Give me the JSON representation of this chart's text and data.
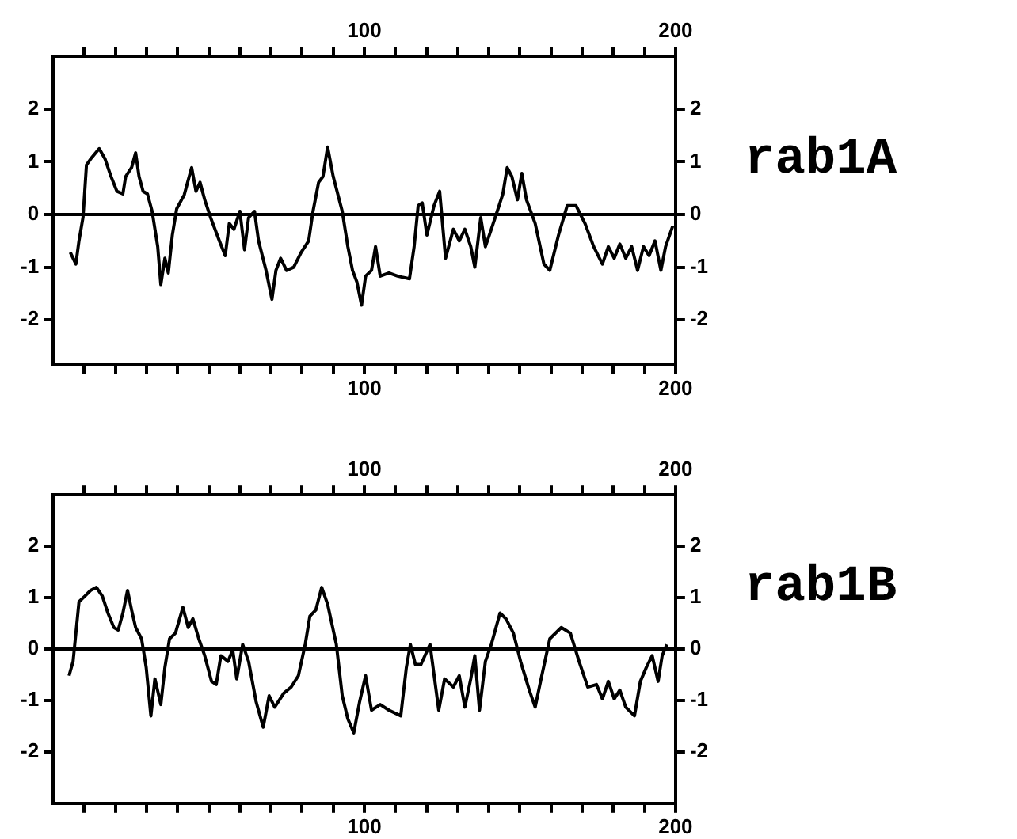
{
  "chart_data": [
    {
      "type": "line",
      "annotations": [
        "rab1A"
      ],
      "xlim": [
        0,
        200
      ],
      "x2lim": [
        0,
        200
      ],
      "ylim": [
        -2.85,
        3
      ],
      "y2lim": [
        -2.85,
        3
      ],
      "xticks": [
        {
          "value": 10,
          "label": null
        },
        {
          "value": 20,
          "label": null
        },
        {
          "value": 30,
          "label": null
        },
        {
          "value": 40,
          "label": null
        },
        {
          "value": 50,
          "label": null
        },
        {
          "value": 60,
          "label": null
        },
        {
          "value": 70,
          "label": null
        },
        {
          "value": 80,
          "label": null
        },
        {
          "value": 90,
          "label": null
        },
        {
          "value": 100,
          "label": "100"
        },
        {
          "value": 110,
          "label": null
        },
        {
          "value": 120,
          "label": null
        },
        {
          "value": 130,
          "label": null
        },
        {
          "value": 140,
          "label": null
        },
        {
          "value": 150,
          "label": null
        },
        {
          "value": 160,
          "label": null
        },
        {
          "value": 170,
          "label": null
        },
        {
          "value": 180,
          "label": null
        },
        {
          "value": 190,
          "label": null
        },
        {
          "value": 200,
          "label": "200"
        }
      ],
      "x2ticks": [
        {
          "value": 10,
          "label": null
        },
        {
          "value": 20,
          "label": null
        },
        {
          "value": 30,
          "label": null
        },
        {
          "value": 40,
          "label": null
        },
        {
          "value": 50,
          "label": null
        },
        {
          "value": 60,
          "label": null
        },
        {
          "value": 70,
          "label": null
        },
        {
          "value": 80,
          "label": null
        },
        {
          "value": 90,
          "label": null
        },
        {
          "value": 100,
          "label": "100"
        },
        {
          "value": 110,
          "label": null
        },
        {
          "value": 120,
          "label": null
        },
        {
          "value": 130,
          "label": null
        },
        {
          "value": 140,
          "label": null
        },
        {
          "value": 150,
          "label": null
        },
        {
          "value": 160,
          "label": null
        },
        {
          "value": 170,
          "label": null
        },
        {
          "value": 180,
          "label": null
        },
        {
          "value": 190,
          "label": null
        },
        {
          "value": 200,
          "label": "200"
        }
      ],
      "yticks": [
        -2,
        -1,
        0,
        1,
        2
      ],
      "y2ticks": [
        -2,
        -1,
        0,
        1,
        2
      ],
      "marker": "none",
      "line_style": "solid",
      "ref_lines": [
        {
          "axis": "y",
          "value": 0,
          "color": "#000000"
        }
      ],
      "series": [
        {
          "color": "#000000",
          "x": [
            5.5,
            7.3,
            8.3,
            9.6,
            10.7,
            12,
            14.8,
            16.7,
            18.6,
            20.5,
            22.4,
            23.3,
            25.2,
            26.5,
            27.6,
            28.9,
            30.3,
            31.8,
            33.6,
            34.6,
            35.9,
            37,
            38.3,
            39.7,
            42.1,
            44.5,
            45.9,
            47.2,
            48.7,
            50.6,
            53.4,
            55.3,
            56.6,
            58.1,
            60,
            61.5,
            62.8,
            64.7,
            66,
            68.4,
            70.3,
            71.6,
            73.1,
            75,
            77.3,
            79.7,
            82.1,
            83.5,
            85.3,
            86.7,
            88.2,
            90,
            92.9,
            94.7,
            96.2,
            97.6,
            99.1,
            100.4,
            102.3,
            103.6,
            105.1,
            107.9,
            110.7,
            114.5,
            116,
            117.3,
            118.6,
            120.1,
            122.4,
            124.2,
            126.1,
            128.6,
            130.5,
            132.3,
            134.2,
            135.5,
            137.4,
            138.9,
            140.8,
            142.7,
            144.5,
            145.9,
            147.4,
            149.2,
            150.6,
            152.1,
            154.9,
            157.7,
            159.6,
            162.4,
            165.2,
            168,
            170.9,
            173.7,
            176.5,
            178.4,
            180.3,
            182.1,
            184,
            185.9,
            187.8,
            189.7,
            191.5,
            193.4,
            195.3,
            196.8,
            199.1
          ],
          "values": [
            -0.72,
            -0.94,
            -0.5,
            -0.05,
            0.94,
            1.05,
            1.25,
            1.05,
            0.72,
            0.44,
            0.39,
            0.72,
            0.89,
            1.17,
            0.72,
            0.44,
            0.39,
            0.06,
            -0.61,
            -1.33,
            -0.83,
            -1.11,
            -0.39,
            0.11,
            0.37,
            0.89,
            0.44,
            0.61,
            0.28,
            -0.06,
            -0.5,
            -0.78,
            -0.17,
            -0.28,
            0.06,
            -0.67,
            -0.06,
            0.06,
            -0.5,
            -1.06,
            -1.61,
            -1.06,
            -0.83,
            -1.06,
            -1.0,
            -0.72,
            -0.5,
            0.06,
            0.61,
            0.72,
            1.28,
            0.72,
            0.06,
            -0.61,
            -1.06,
            -1.28,
            -1.72,
            -1.17,
            -1.06,
            -0.61,
            -1.17,
            -1.11,
            -1.17,
            -1.22,
            -0.61,
            0.17,
            0.22,
            -0.39,
            0.17,
            0.44,
            -0.83,
            -0.28,
            -0.5,
            -0.28,
            -0.61,
            -1.0,
            -0.06,
            -0.61,
            -0.28,
            0.06,
            0.39,
            0.89,
            0.72,
            0.28,
            0.78,
            0.28,
            -0.17,
            -0.94,
            -1.06,
            -0.39,
            0.17,
            0.17,
            -0.17,
            -0.61,
            -0.94,
            -0.61,
            -0.83,
            -0.56,
            -0.83,
            -0.61,
            -1.06,
            -0.61,
            -0.78,
            -0.5,
            -1.06,
            -0.61,
            -0.22
          ]
        }
      ]
    },
    {
      "type": "line",
      "annotations": [
        "rab1B"
      ],
      "xlim": [
        0,
        200
      ],
      "x2lim": [
        0,
        200
      ],
      "ylim": [
        -3,
        3
      ],
      "y2lim": [
        -3,
        3
      ],
      "xticks": [
        {
          "value": 10,
          "label": null
        },
        {
          "value": 20,
          "label": null
        },
        {
          "value": 30,
          "label": null
        },
        {
          "value": 40,
          "label": null
        },
        {
          "value": 50,
          "label": null
        },
        {
          "value": 60,
          "label": null
        },
        {
          "value": 70,
          "label": null
        },
        {
          "value": 80,
          "label": null
        },
        {
          "value": 90,
          "label": null
        },
        {
          "value": 100,
          "label": "100"
        },
        {
          "value": 110,
          "label": null
        },
        {
          "value": 120,
          "label": null
        },
        {
          "value": 130,
          "label": null
        },
        {
          "value": 140,
          "label": null
        },
        {
          "value": 150,
          "label": null
        },
        {
          "value": 160,
          "label": null
        },
        {
          "value": 170,
          "label": null
        },
        {
          "value": 180,
          "label": null
        },
        {
          "value": 190,
          "label": null
        },
        {
          "value": 200,
          "label": "200"
        }
      ],
      "x2ticks": [
        {
          "value": 10,
          "label": null
        },
        {
          "value": 20,
          "label": null
        },
        {
          "value": 30,
          "label": null
        },
        {
          "value": 40,
          "label": null
        },
        {
          "value": 50,
          "label": null
        },
        {
          "value": 60,
          "label": null
        },
        {
          "value": 70,
          "label": null
        },
        {
          "value": 80,
          "label": null
        },
        {
          "value": 90,
          "label": null
        },
        {
          "value": 100,
          "label": "100"
        },
        {
          "value": 110,
          "label": null
        },
        {
          "value": 120,
          "label": null
        },
        {
          "value": 130,
          "label": null
        },
        {
          "value": 140,
          "label": null
        },
        {
          "value": 150,
          "label": null
        },
        {
          "value": 160,
          "label": null
        },
        {
          "value": 170,
          "label": null
        },
        {
          "value": 180,
          "label": null
        },
        {
          "value": 190,
          "label": null
        },
        {
          "value": 200,
          "label": "200"
        }
      ],
      "yticks": [
        -2,
        -1,
        0,
        1,
        2
      ],
      "y2ticks": [
        -2,
        -1,
        0,
        1,
        2
      ],
      "marker": "none",
      "line_style": "solid",
      "ref_lines": [
        {
          "axis": "y",
          "value": 0,
          "color": "#000000"
        }
      ],
      "series": [
        {
          "color": "#000000",
          "x": [
            5.1,
            6.4,
            7.3,
            8.3,
            10.2,
            12,
            13.9,
            15.8,
            17.6,
            19.5,
            20.9,
            22.4,
            23.9,
            25.2,
            26.5,
            28.4,
            29.9,
            31.4,
            32.7,
            34.6,
            35.9,
            37.4,
            39.3,
            41.7,
            43.4,
            44.9,
            46.8,
            48.7,
            50.9,
            52.4,
            53.9,
            56.2,
            57.7,
            59,
            60.9,
            62.8,
            65.2,
            67.5,
            69.4,
            71.2,
            74.1,
            76.5,
            78.8,
            81,
            82.5,
            84.4,
            86.3,
            88.2,
            91,
            92.9,
            94.7,
            96.6,
            98.5,
            100.4,
            102.3,
            105.1,
            107.9,
            111.7,
            113.5,
            114.8,
            116.4,
            118.2,
            121.1,
            123.9,
            125.8,
            128.6,
            130.5,
            132.3,
            134.2,
            135.5,
            137,
            138.9,
            140.8,
            143.6,
            145.5,
            147.9,
            150.2,
            153,
            154.9,
            156.8,
            159.6,
            163.3,
            166.2,
            169,
            171.8,
            174.6,
            176.5,
            178.4,
            180.3,
            182.1,
            184,
            186.8,
            188.7,
            190.6,
            192.5,
            194.4,
            195.7,
            197.2
          ],
          "values": [
            -0.52,
            -0.24,
            0.31,
            0.92,
            1.03,
            1.14,
            1.2,
            1.03,
            0.7,
            0.42,
            0.37,
            0.7,
            1.14,
            0.76,
            0.42,
            0.2,
            -0.36,
            -1.3,
            -0.58,
            -1.08,
            -0.36,
            0.2,
            0.31,
            0.81,
            0.42,
            0.59,
            0.2,
            -0.13,
            -0.63,
            -0.69,
            -0.13,
            -0.24,
            -0.02,
            -0.58,
            0.09,
            -0.24,
            -1.02,
            -1.52,
            -0.91,
            -1.13,
            -0.86,
            -0.74,
            -0.52,
            0.09,
            0.64,
            0.76,
            1.2,
            0.87,
            0.09,
            -0.91,
            -1.36,
            -1.63,
            -1.02,
            -0.52,
            -1.19,
            -1.08,
            -1.19,
            -1.3,
            -0.36,
            0.09,
            -0.3,
            -0.3,
            0.09,
            -1.19,
            -0.58,
            -0.74,
            -0.52,
            -1.13,
            -0.58,
            -0.13,
            -1.19,
            -0.24,
            0.09,
            0.7,
            0.59,
            0.31,
            -0.24,
            -0.8,
            -1.13,
            -0.58,
            0.2,
            0.42,
            0.31,
            -0.24,
            -0.74,
            -0.69,
            -0.97,
            -0.63,
            -0.97,
            -0.8,
            -1.13,
            -1.3,
            -0.63,
            -0.36,
            -0.13,
            -0.63,
            -0.13,
            0.09
          ]
        }
      ]
    }
  ]
}
